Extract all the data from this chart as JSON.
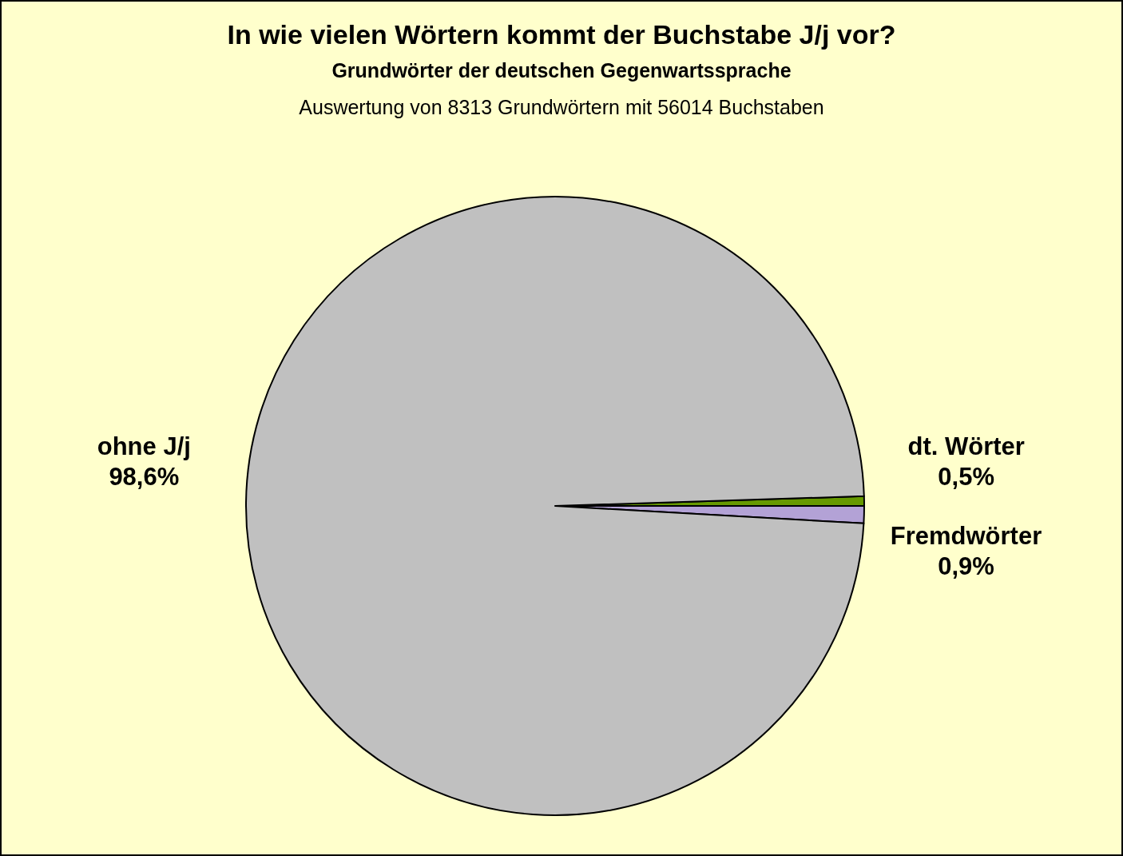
{
  "chart_data": {
    "type": "pie",
    "title": "In wie vielen Wörtern kommt der Buchstabe J/j vor?",
    "subtitle": "Grundwörter der deutschen Gegenwartssprache",
    "annotations": [
      "Auswertung von 8313 Grundwörtern mit 56014 Buchstaben"
    ],
    "categories": [
      "dt. Wörter",
      "Fremdwörter",
      "ohne J/j"
    ],
    "values": [
      0.5,
      0.9,
      98.6
    ],
    "value_labels": [
      "0,5%",
      "0,9%",
      "98,6%"
    ],
    "colors": [
      "#669900",
      "#b3a2d6",
      "#c0c0c0"
    ]
  }
}
